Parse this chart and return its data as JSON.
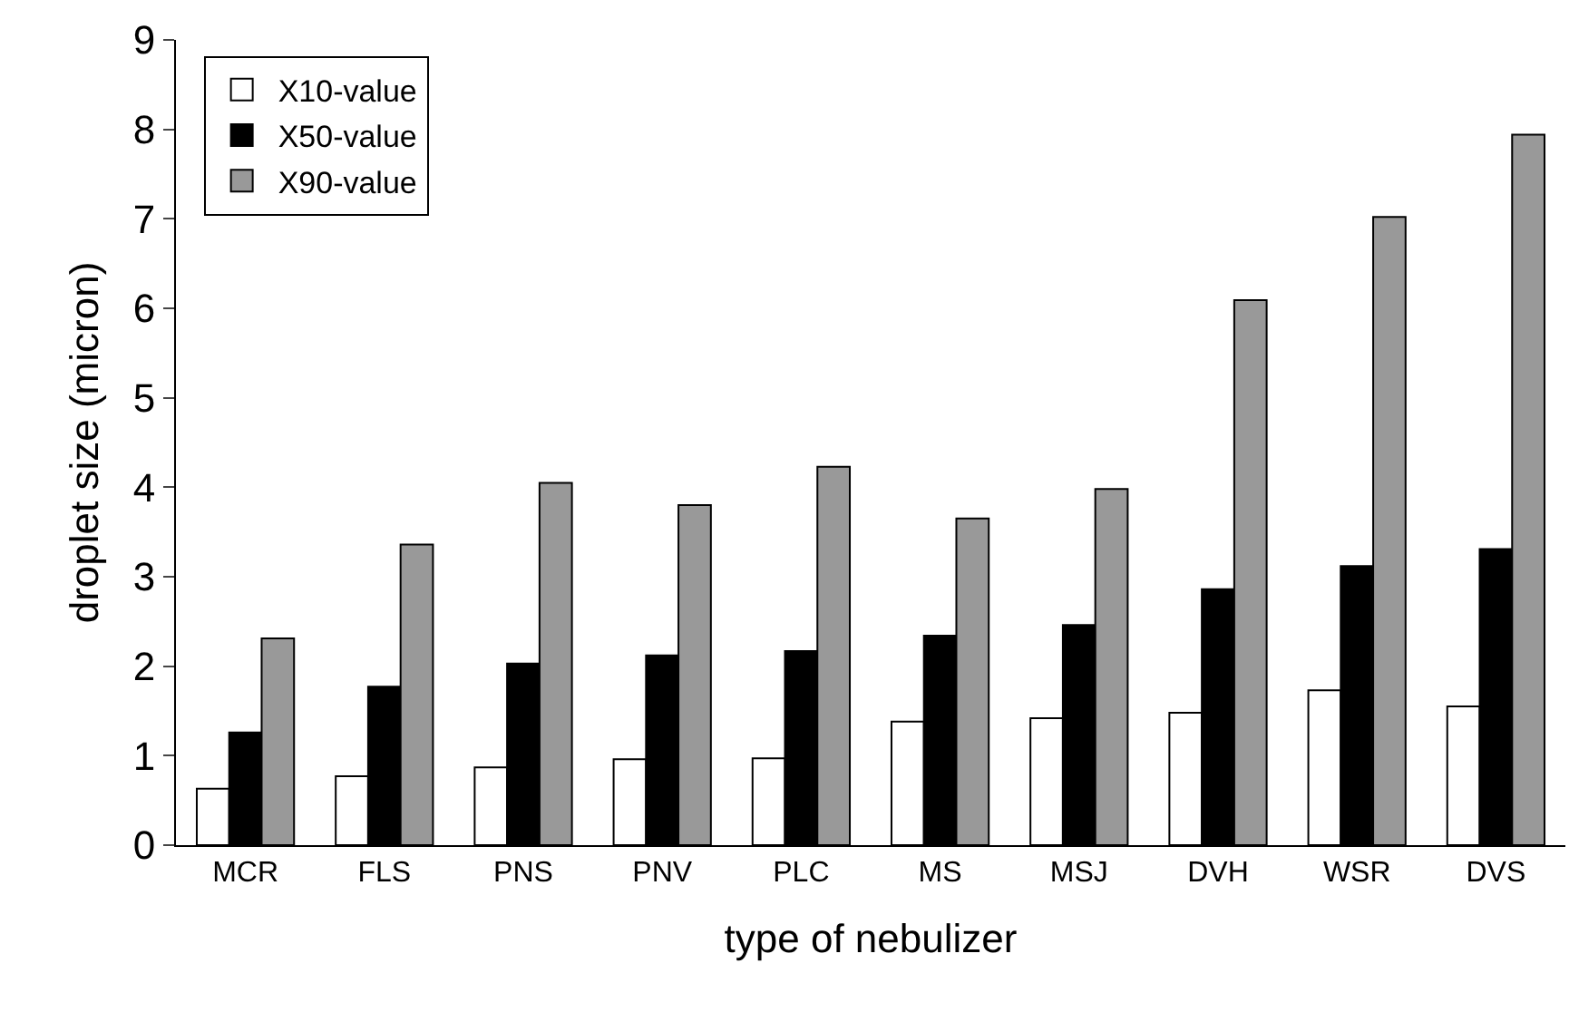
{
  "chart_data": {
    "type": "bar",
    "xlabel": "type of nebulizer",
    "ylabel": "droplet size (micron)",
    "categories": [
      "MCR",
      "FLS",
      "PNS",
      "PNV",
      "PLC",
      "MS",
      "MSJ",
      "DVH",
      "WSR",
      "DVS"
    ],
    "series": [
      {
        "name": "X10-value",
        "color": "#ffffff",
        "values": [
          0.63,
          0.77,
          0.87,
          0.96,
          0.97,
          1.38,
          1.42,
          1.48,
          1.73,
          1.55
        ]
      },
      {
        "name": "X50-value",
        "color": "#000000",
        "values": [
          1.26,
          1.77,
          2.03,
          2.12,
          2.17,
          2.34,
          2.46,
          2.86,
          3.12,
          3.31
        ]
      },
      {
        "name": "X90-value",
        "color": "#999999",
        "values": [
          2.31,
          3.36,
          4.05,
          3.8,
          4.23,
          3.65,
          3.98,
          6.09,
          7.02,
          7.94
        ]
      }
    ],
    "ylim": [
      0,
      9
    ],
    "yticks": [
      0,
      1,
      2,
      3,
      4,
      5,
      6,
      7,
      8,
      9
    ],
    "grid": false,
    "legend": "top left"
  }
}
